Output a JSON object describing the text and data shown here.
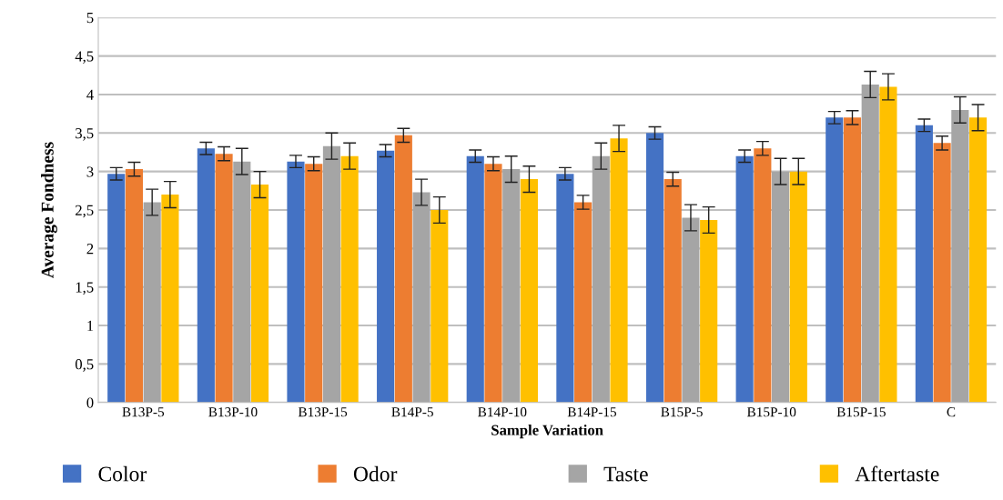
{
  "chart_data": {
    "type": "bar",
    "xlabel": "Sample Variation",
    "ylabel": "Average Fondness",
    "categories": [
      "B13P-5",
      "B13P-10",
      "B13P-15",
      "B14P-5",
      "B14P-10",
      "B14P-15",
      "B15P-5",
      "B15P-10",
      "B15P-15",
      "C"
    ],
    "series": [
      {
        "name": "Color",
        "color": "#4472c4",
        "values": [
          2.97,
          3.3,
          3.13,
          3.27,
          3.2,
          2.97,
          3.5,
          3.2,
          3.7,
          3.6
        ],
        "errors": [
          0.08,
          0.08,
          0.08,
          0.08,
          0.08,
          0.08,
          0.08,
          0.08,
          0.08,
          0.08
        ]
      },
      {
        "name": "Odor",
        "color": "#ed7d31",
        "values": [
          3.03,
          3.23,
          3.1,
          3.47,
          3.1,
          2.6,
          2.9,
          3.3,
          3.7,
          3.37
        ],
        "errors": [
          0.09,
          0.09,
          0.09,
          0.09,
          0.09,
          0.09,
          0.09,
          0.09,
          0.09,
          0.09
        ]
      },
      {
        "name": "Taste",
        "color": "#a5a5a5",
        "values": [
          2.6,
          3.13,
          3.33,
          2.73,
          3.03,
          3.2,
          2.4,
          3.0,
          4.13,
          3.8
        ],
        "errors": [
          0.17,
          0.17,
          0.17,
          0.17,
          0.17,
          0.17,
          0.17,
          0.17,
          0.17,
          0.17
        ]
      },
      {
        "name": "Aftertaste",
        "color": "#ffc000",
        "values": [
          2.7,
          2.83,
          3.2,
          2.5,
          2.9,
          3.43,
          2.37,
          3.0,
          4.1,
          3.7
        ],
        "errors": [
          0.17,
          0.17,
          0.17,
          0.17,
          0.17,
          0.17,
          0.17,
          0.17,
          0.17,
          0.17
        ]
      }
    ],
    "ylim": [
      0,
      5
    ],
    "yticks": [
      0,
      {
        "value": 0.5,
        "label": "0,5"
      },
      1,
      {
        "value": 1.5,
        "label": "1,5"
      },
      2,
      {
        "value": 2.5,
        "label": "2,5"
      },
      3,
      {
        "value": 3.5,
        "label": "3,5"
      },
      4,
      {
        "value": 4.5,
        "label": "4,5"
      },
      5
    ],
    "grid": "y",
    "legend": "bottom"
  }
}
